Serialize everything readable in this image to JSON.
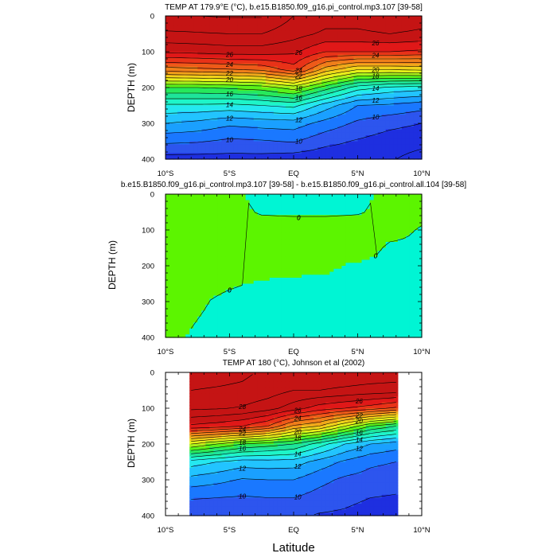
{
  "figure": {
    "xlabel": "Latitude"
  },
  "colors": {
    "temperature_scale": [
      "#1e2fe0",
      "#2d55ee",
      "#1a78ff",
      "#1aa0ff",
      "#22c4ff",
      "#25e8f0",
      "#1ef5c8",
      "#1ee49a",
      "#27e85c",
      "#5bf21a",
      "#a9f01a",
      "#e6f01a",
      "#f0d21a",
      "#f0a81a",
      "#f07f1a",
      "#ee5a19",
      "#e83218",
      "#e01818",
      "#c51414"
    ],
    "difference_fill": [
      "#00f5d4",
      "#5cf500"
    ],
    "gap_fill": "#ffffff"
  },
  "chart_data": [
    {
      "type": "heatmap",
      "title": "TEMP AT 179.9°E (°C), b.e15.B1850.f09_g16.pi_control.mp3.107 [39-58]",
      "ylabel": "DEPTH (m)",
      "xlabel": "",
      "x_ticks": [
        "10°S",
        "5°S",
        "EQ",
        "5°N",
        "10°N"
      ],
      "y_ticks": [
        "0",
        "100",
        "200",
        "300",
        "400"
      ],
      "xlim": [
        -10,
        10
      ],
      "ylim": [
        400,
        0
      ],
      "x": [
        -10,
        -7.5,
        -5,
        -2.5,
        0,
        2.5,
        5,
        7.5,
        10
      ],
      "depth": [
        0,
        50,
        100,
        150,
        200,
        250,
        300,
        350,
        400
      ],
      "values": [
        [
          29.0,
          29.0,
          29.1,
          29.1,
          28.0,
          27.5,
          27.5,
          27.8,
          27.5
        ],
        [
          27.8,
          27.9,
          28.0,
          28.0,
          27.4,
          26.8,
          26.8,
          27.0,
          26.8
        ],
        [
          26.2,
          26.3,
          26.5,
          26.5,
          26.2,
          25.0,
          25.0,
          25.0,
          24.8
        ],
        [
          22.5,
          22.7,
          22.9,
          23.2,
          24.5,
          21.5,
          20.0,
          20.0,
          20.2
        ],
        [
          17.0,
          17.0,
          17.2,
          17.5,
          18.5,
          16.5,
          14.5,
          13.8,
          13.5
        ],
        [
          13.8,
          13.8,
          13.7,
          14.0,
          14.3,
          12.5,
          11.0,
          10.8,
          10.4
        ],
        [
          12.0,
          11.7,
          11.2,
          11.4,
          11.5,
          10.6,
          9.8,
          9.3,
          9.0
        ],
        [
          10.2,
          10.1,
          9.8,
          9.9,
          10.1,
          9.3,
          8.9,
          8.5,
          8.3
        ],
        [
          8.6,
          8.6,
          8.6,
          8.6,
          8.4,
          8.3,
          8.4,
          8.1,
          7.6
        ]
      ],
      "levels": [
        8,
        9,
        10,
        11,
        12,
        13,
        14,
        15,
        16,
        17,
        18,
        19,
        20,
        21,
        22,
        23,
        24,
        25,
        26,
        27,
        28,
        29
      ],
      "contour_labels": [
        "26",
        "26",
        "26",
        "24",
        "24",
        "24",
        "22",
        "22",
        "20",
        "20",
        "18",
        "18",
        "16",
        "16",
        "14",
        "14",
        "12",
        "12",
        "12",
        "10",
        "10",
        "10"
      ]
    },
    {
      "type": "heatmap",
      "title": "b.e15.B1850.f09_g16.pi_control.mp3.107 [39-58] - b.e15.B1850.f09_g16.pi_control.all.104 [39-58]",
      "ylabel": "DEPTH (m)",
      "xlabel": "",
      "x_ticks": [
        "10°S",
        "5°S",
        "EQ",
        "5°N",
        "10°N"
      ],
      "y_ticks": [
        "0",
        "100",
        "200",
        "300",
        "400"
      ],
      "xlim": [
        -10,
        10
      ],
      "ylim": [
        400,
        0
      ],
      "x": [
        -10,
        -7.5,
        -5,
        -2.5,
        0,
        2.5,
        5,
        7.5,
        10
      ],
      "depth": [
        0,
        50,
        100,
        150,
        200,
        250,
        300,
        350,
        400
      ],
      "values": [
        [
          0.3,
          0.3,
          0.3,
          -0.3,
          -0.3,
          -0.3,
          -0.3,
          0.3,
          0.3
        ],
        [
          0.3,
          0.3,
          0.3,
          -0.1,
          -0.2,
          -0.2,
          -0.1,
          0.3,
          0.3
        ],
        [
          0.6,
          0.6,
          0.6,
          0.5,
          0.6,
          0.6,
          0.6,
          0.4,
          -0.1
        ],
        [
          0.8,
          0.9,
          0.9,
          0.9,
          0.8,
          0.9,
          0.7,
          -0.2,
          -0.2
        ],
        [
          0.6,
          0.6,
          0.5,
          0.4,
          0.3,
          0.2,
          -0.2,
          -0.3,
          -0.3
        ],
        [
          0.3,
          0.3,
          0.1,
          -0.1,
          -0.2,
          -0.2,
          -0.3,
          -0.3,
          -0.3
        ],
        [
          0.2,
          0.1,
          -0.2,
          -0.3,
          -0.3,
          -0.3,
          -0.3,
          -0.3,
          -0.3
        ],
        [
          0.2,
          0.0,
          -0.2,
          -0.3,
          -0.3,
          -0.3,
          -0.3,
          -0.3,
          -0.3
        ],
        [
          0.2,
          -0.1,
          -0.2,
          -0.3,
          -0.3,
          -0.3,
          -0.3,
          -0.3,
          -0.3
        ]
      ],
      "levels": [
        0
      ],
      "contour_labels": [
        "0",
        "0",
        "0",
        "0",
        "0",
        "0",
        "0"
      ]
    },
    {
      "type": "heatmap",
      "title": "TEMP AT 180 (°C), Johnson et al (2002)",
      "ylabel": "DEPTH (m)",
      "xlabel": "Latitude",
      "x_ticks": [
        "10°S",
        "5°S",
        "EQ",
        "5°N",
        "10°N"
      ],
      "y_ticks": [
        "0",
        "100",
        "200",
        "300",
        "400"
      ],
      "xlim": [
        -10,
        10
      ],
      "ylim": [
        400,
        0
      ],
      "data_xrange": [
        -8,
        8
      ],
      "x": [
        -8,
        -6,
        -4,
        -2,
        0,
        2,
        4,
        6,
        8
      ],
      "depth": [
        0,
        50,
        100,
        150,
        200,
        250,
        300,
        350,
        400
      ],
      "values": [
        [
          29.5,
          29.4,
          29.2,
          28.8,
          28.4,
          28.8,
          28.8,
          28.7,
          28.6
        ],
        [
          29.0,
          28.9,
          28.8,
          28.5,
          28.0,
          28.0,
          27.8,
          27.6,
          27.5
        ],
        [
          28.2,
          28.1,
          27.9,
          27.4,
          26.5,
          25.5,
          25.0,
          24.5,
          23.8
        ],
        [
          25.8,
          25.5,
          25.0,
          24.0,
          21.8,
          21.0,
          19.0,
          17.0,
          16.0
        ],
        [
          19.0,
          18.0,
          17.0,
          16.5,
          16.0,
          14.5,
          13.0,
          12.0,
          11.5
        ],
        [
          13.5,
          13.0,
          12.5,
          12.6,
          12.5,
          11.6,
          10.8,
          10.2,
          10.0
        ],
        [
          11.6,
          11.3,
          10.9,
          11.0,
          11.0,
          10.3,
          9.8,
          9.6,
          9.4
        ],
        [
          10.1,
          10.0,
          9.9,
          10.0,
          10.0,
          9.6,
          9.3,
          9.0,
          8.9
        ],
        [
          9.0,
          9.1,
          9.2,
          9.2,
          9.2,
          8.9,
          8.8,
          8.5,
          8.4
        ]
      ],
      "levels": [
        8,
        9,
        10,
        11,
        12,
        13,
        14,
        15,
        16,
        17,
        18,
        19,
        20,
        21,
        22,
        23,
        24,
        25,
        26,
        27,
        28,
        29
      ],
      "contour_labels": [
        "28",
        "26",
        "26",
        "24",
        "24",
        "22",
        "22",
        "20",
        "20",
        "18",
        "18",
        "16",
        "16",
        "14",
        "14",
        "12",
        "12",
        "12",
        "10",
        "10"
      ]
    }
  ]
}
